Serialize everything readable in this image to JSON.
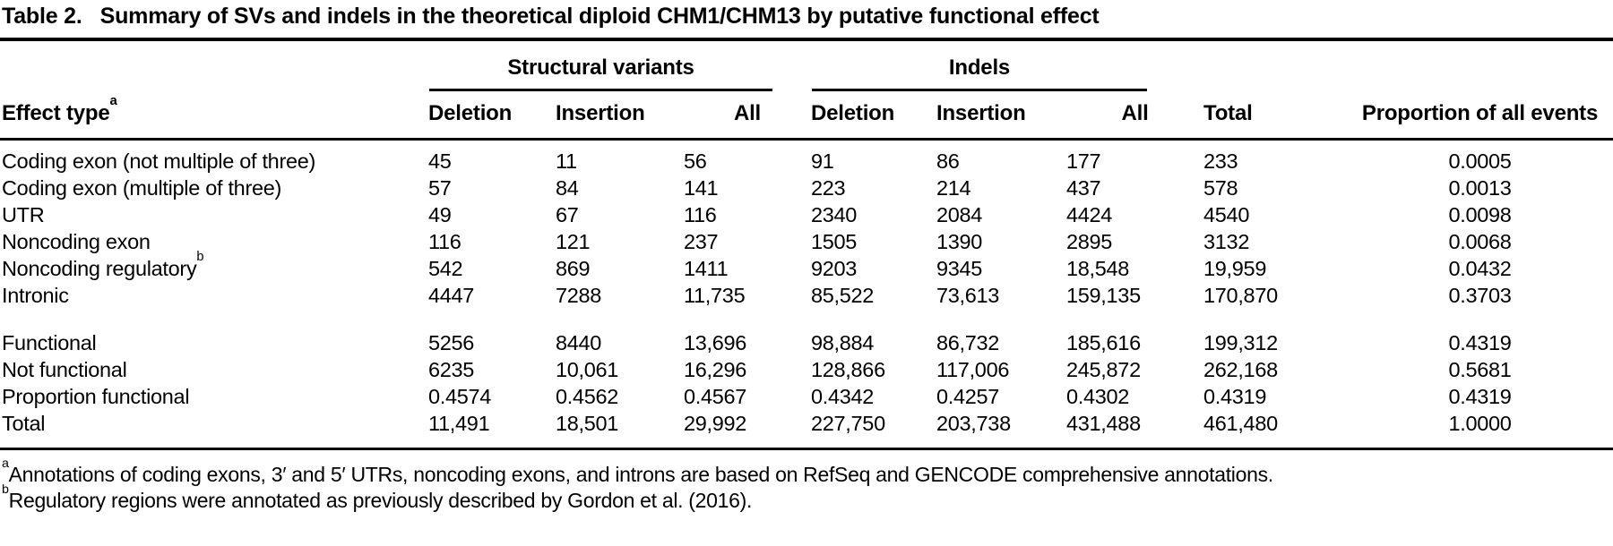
{
  "title": {
    "label": "Table 2.",
    "text": "Summary of SVs and indels in the theoretical diploid CHM1/CHM13 by putative functional effect"
  },
  "table": {
    "groups": [
      {
        "label": "Structural variants"
      },
      {
        "label": "Indels"
      }
    ],
    "columns": {
      "effect_type": {
        "label": "Effect type",
        "sup": "a"
      },
      "sv": [
        "Deletion",
        "Insertion",
        "All"
      ],
      "indel": [
        "Deletion",
        "Insertion",
        "All"
      ],
      "total": "Total",
      "proportion": "Proportion of all events"
    },
    "rows_effects": [
      {
        "label": "Coding exon (not multiple of three)",
        "sup": "",
        "values": [
          "45",
          "11",
          "56",
          "91",
          "86",
          "177",
          "233",
          "0.0005"
        ]
      },
      {
        "label": "Coding exon (multiple of three)",
        "sup": "",
        "values": [
          "57",
          "84",
          "141",
          "223",
          "214",
          "437",
          "578",
          "0.0013"
        ]
      },
      {
        "label": "UTR",
        "sup": "",
        "values": [
          "49",
          "67",
          "116",
          "2340",
          "2084",
          "4424",
          "4540",
          "0.0098"
        ]
      },
      {
        "label": "Noncoding exon",
        "sup": "",
        "values": [
          "116",
          "121",
          "237",
          "1505",
          "1390",
          "2895",
          "3132",
          "0.0068"
        ]
      },
      {
        "label": "Noncoding regulatory",
        "sup": "b",
        "values": [
          "542",
          "869",
          "1411",
          "9203",
          "9345",
          "18,548",
          "19,959",
          "0.0432"
        ]
      },
      {
        "label": "Intronic",
        "sup": "",
        "values": [
          "4447",
          "7288",
          "11,735",
          "85,522",
          "73,613",
          "159,135",
          "170,870",
          "0.3703"
        ]
      }
    ],
    "rows_summary": [
      {
        "label": "Functional",
        "sup": "",
        "values": [
          "5256",
          "8440",
          "13,696",
          "98,884",
          "86,732",
          "185,616",
          "199,312",
          "0.4319"
        ]
      },
      {
        "label": "Not functional",
        "sup": "",
        "values": [
          "6235",
          "10,061",
          "16,296",
          "128,866",
          "117,006",
          "245,872",
          "262,168",
          "0.5681"
        ]
      },
      {
        "label": "Proportion functional",
        "sup": "",
        "values": [
          "0.4574",
          "0.4562",
          "0.4567",
          "0.4342",
          "0.4257",
          "0.4302",
          "0.4319",
          "0.4319"
        ]
      },
      {
        "label": "Total",
        "sup": "",
        "values": [
          "11,491",
          "18,501",
          "29,992",
          "227,750",
          "203,738",
          "431,488",
          "461,480",
          "1.0000"
        ]
      }
    ]
  },
  "footnotes": [
    {
      "marker": "a",
      "text": "Annotations of coding exons, 3′ and 5′ UTRs, noncoding exons, and introns are based on RefSeq and GENCODE comprehensive annotations."
    },
    {
      "marker": "b",
      "text": "Regulatory regions were annotated as previously described by Gordon et al. (2016)."
    }
  ],
  "colors": {
    "text": "#000000",
    "background": "#ffffff",
    "rule": "#000000"
  }
}
